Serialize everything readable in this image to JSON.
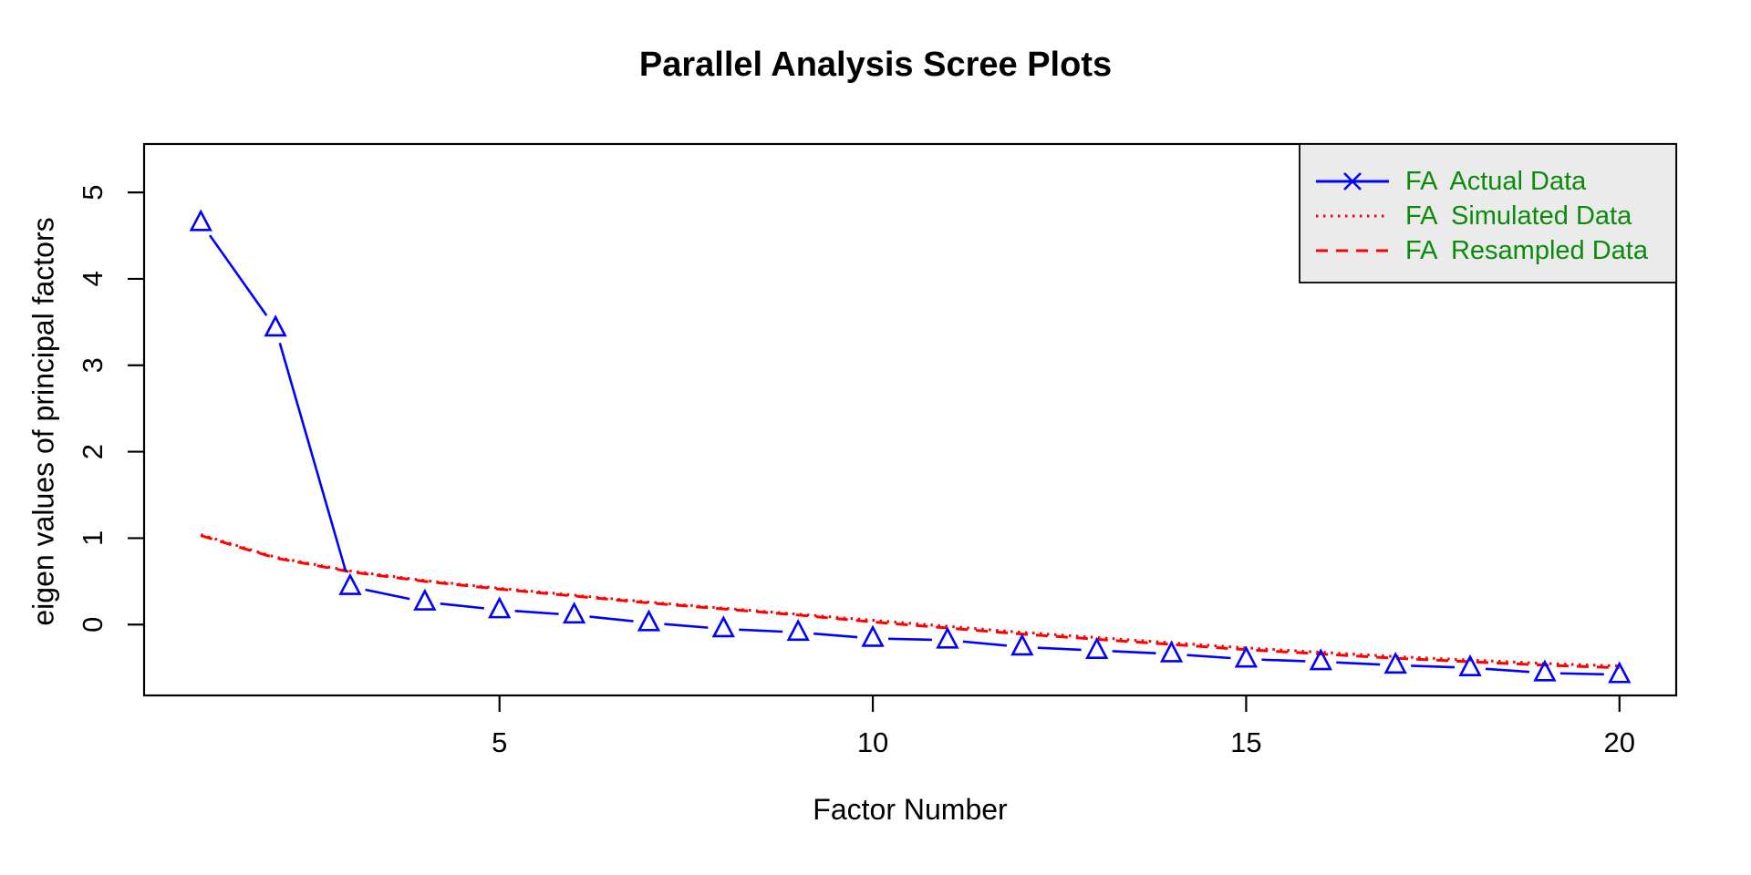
{
  "title": "Parallel Analysis Scree Plots",
  "axes": {
    "x_label": "Factor Number",
    "y_label": "eigen values of principal factors",
    "x_ticks": [
      5,
      10,
      15,
      20
    ],
    "y_ticks": [
      0,
      1,
      2,
      3,
      4,
      5
    ]
  },
  "legend": {
    "text_color": "#0c8a0c",
    "background": "#ebebeb",
    "entries": [
      {
        "label": "FA  Actual Data",
        "color": "#0000ff",
        "style": "solid-x"
      },
      {
        "label": "FA  Simulated Data",
        "color": "#ff0000",
        "style": "dotted"
      },
      {
        "label": "FA  Resampled Data",
        "color": "#ff0000",
        "style": "dashed"
      }
    ]
  },
  "chart_data": {
    "type": "line",
    "title": "Parallel Analysis Scree Plots",
    "xlabel": "Factor Number",
    "ylabel": "eigen values of principal factors",
    "x": [
      1,
      2,
      3,
      4,
      5,
      6,
      7,
      8,
      9,
      10,
      11,
      12,
      13,
      14,
      15,
      16,
      17,
      18,
      19,
      20
    ],
    "xlim": [
      0.24,
      20.76
    ],
    "ylim": [
      -0.82,
      5.56
    ],
    "grid": false,
    "legend_position": "top-right",
    "series": [
      {
        "name": "FA  Actual Data",
        "color": "#0000ff",
        "line": "solid",
        "marker": "triangle-open",
        "values": [
          4.65,
          3.43,
          0.44,
          0.26,
          0.17,
          0.11,
          0.02,
          -0.05,
          -0.09,
          -0.16,
          -0.18,
          -0.26,
          -0.3,
          -0.34,
          -0.4,
          -0.43,
          -0.47,
          -0.5,
          -0.56,
          -0.58
        ]
      },
      {
        "name": "FA  Simulated Data",
        "color": "#ff0000",
        "line": "dotted",
        "marker": "none",
        "values": [
          1.04,
          0.78,
          0.62,
          0.51,
          0.42,
          0.34,
          0.26,
          0.19,
          0.12,
          0.05,
          -0.02,
          -0.09,
          -0.15,
          -0.21,
          -0.27,
          -0.32,
          -0.37,
          -0.41,
          -0.45,
          -0.48
        ]
      },
      {
        "name": "FA  Resampled Data",
        "color": "#ff0000",
        "line": "dashed",
        "marker": "none",
        "values": [
          1.03,
          0.77,
          0.61,
          0.5,
          0.41,
          0.33,
          0.25,
          0.18,
          0.11,
          0.03,
          -0.04,
          -0.11,
          -0.17,
          -0.23,
          -0.29,
          -0.34,
          -0.39,
          -0.43,
          -0.47,
          -0.5
        ]
      }
    ]
  }
}
